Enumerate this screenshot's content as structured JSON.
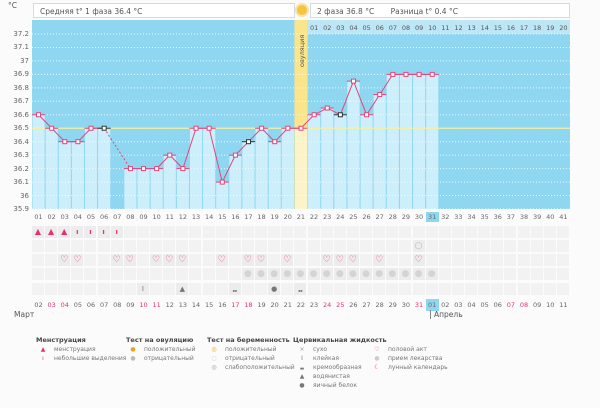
{
  "unit": "°C",
  "header": {
    "phase1": "Средняя t° 1 фаза 36.4 °C",
    "phase2": "2 фаза 36.8 °C",
    "diff": "Разница t° 0.4 °C",
    "ovulation": "овуляция"
  },
  "months": {
    "first": "Март",
    "second": "Апрель"
  },
  "colors": {
    "bar": "#cdeefb",
    "bg": "#8fd7f1",
    "line": "#e0457b",
    "cover": "#f3f0a0",
    "ovulation": "#fbe58a",
    "weekend": "#e8306a"
  },
  "chart_data": {
    "type": "line",
    "title": "",
    "ylabel": "°C",
    "ylim": [
      35.9,
      37.2
    ],
    "yticks": [
      "37.2",
      "37.1",
      "37",
      "36.9",
      "36.8",
      "36.7",
      "36.6",
      "36.5",
      "36.4",
      "36.3",
      "36.2",
      "36.1",
      "36",
      "35.9"
    ],
    "coverline": 36.5,
    "ovulation_day": 21,
    "highlight_day": 31,
    "x": [
      1,
      2,
      3,
      4,
      5,
      6,
      7,
      8,
      9,
      10,
      11,
      12,
      13,
      14,
      15,
      16,
      17,
      18,
      19,
      20,
      21,
      22,
      23,
      24,
      25,
      26,
      27,
      28,
      29,
      30,
      31,
      32,
      33,
      34,
      35,
      36,
      37,
      38,
      39,
      40,
      41
    ],
    "x_labels": [
      "01",
      "02",
      "03",
      "04",
      "05",
      "06",
      "07",
      "08",
      "09",
      "10",
      "11",
      "12",
      "13",
      "14",
      "15",
      "16",
      "17",
      "18",
      "19",
      "20",
      "21",
      "22",
      "23",
      "24",
      "25",
      "26",
      "27",
      "28",
      "29",
      "30",
      "31",
      "32",
      "33",
      "34",
      "35",
      "36",
      "37",
      "38",
      "39",
      "40",
      "41"
    ],
    "temps": [
      36.6,
      36.5,
      36.4,
      36.4,
      36.5,
      36.5,
      null,
      36.2,
      36.2,
      36.2,
      36.3,
      36.2,
      36.5,
      36.5,
      36.1,
      36.3,
      36.4,
      36.5,
      36.4,
      36.5,
      36.5,
      36.6,
      36.65,
      36.6,
      36.85,
      36.6,
      36.75,
      36.9,
      36.9,
      36.9,
      36.9,
      null,
      null,
      null,
      null,
      null,
      null,
      null,
      null,
      null,
      null
    ],
    "excluded_days": [
      6,
      17,
      24
    ],
    "phase2_days": [
      "01",
      "02",
      "03",
      "04",
      "05",
      "06",
      "07",
      "08",
      "09",
      "10",
      "11",
      "12",
      "13",
      "14",
      "15",
      "16",
      "17",
      "18",
      "19",
      "20"
    ]
  },
  "marks": {
    "menstruation_heavy": [
      1,
      2,
      3
    ],
    "menstruation_light": [
      4,
      5,
      6,
      7
    ],
    "pregnancy_negative": [
      30
    ],
    "intercourse": [
      3,
      4,
      7,
      8,
      10,
      11,
      12,
      15,
      17,
      18,
      20,
      23,
      24,
      25,
      27,
      30
    ],
    "medication": [
      17,
      18,
      19,
      20,
      21,
      22,
      23,
      24,
      25,
      26,
      27,
      28,
      29,
      30,
      31
    ],
    "cervical": {
      "9": "sticky",
      "12": "watery",
      "16": "creamy",
      "19": "eggwhite",
      "21": "creamy"
    }
  },
  "dates": [
    "02",
    "03",
    "04",
    "05",
    "06",
    "07",
    "08",
    "09",
    "10",
    "11",
    "12",
    "13",
    "14",
    "15",
    "16",
    "17",
    "18",
    "19",
    "20",
    "21",
    "22",
    "23",
    "24",
    "25",
    "26",
    "27",
    "28",
    "29",
    "30",
    "31",
    "01",
    "02",
    "03",
    "04",
    "05",
    "06",
    "07",
    "08",
    "09",
    "10",
    "11"
  ],
  "weekend_idx": [
    1,
    2,
    8,
    9,
    15,
    16,
    22,
    23,
    29,
    36,
    37
  ],
  "legend": {
    "menstruation": {
      "title": "Менструация",
      "items": [
        "менструация",
        "небольшие выделения"
      ]
    },
    "ovulation_test": {
      "title": "Тест на овуляцию",
      "items": [
        "положительный",
        "отрицательный"
      ]
    },
    "pregnancy_test": {
      "title": "Тест на беременность",
      "items": [
        "положительный",
        "отрицательный",
        "слабоположительный"
      ]
    },
    "cervical": {
      "title": "Цервикальная жидкость",
      "items": [
        "сухо",
        "клейкая",
        "кремообразная",
        "водянистая",
        "яичный белок"
      ]
    },
    "other": {
      "items": [
        "половой акт",
        "прием лекарства",
        "лунный календарь"
      ]
    }
  }
}
